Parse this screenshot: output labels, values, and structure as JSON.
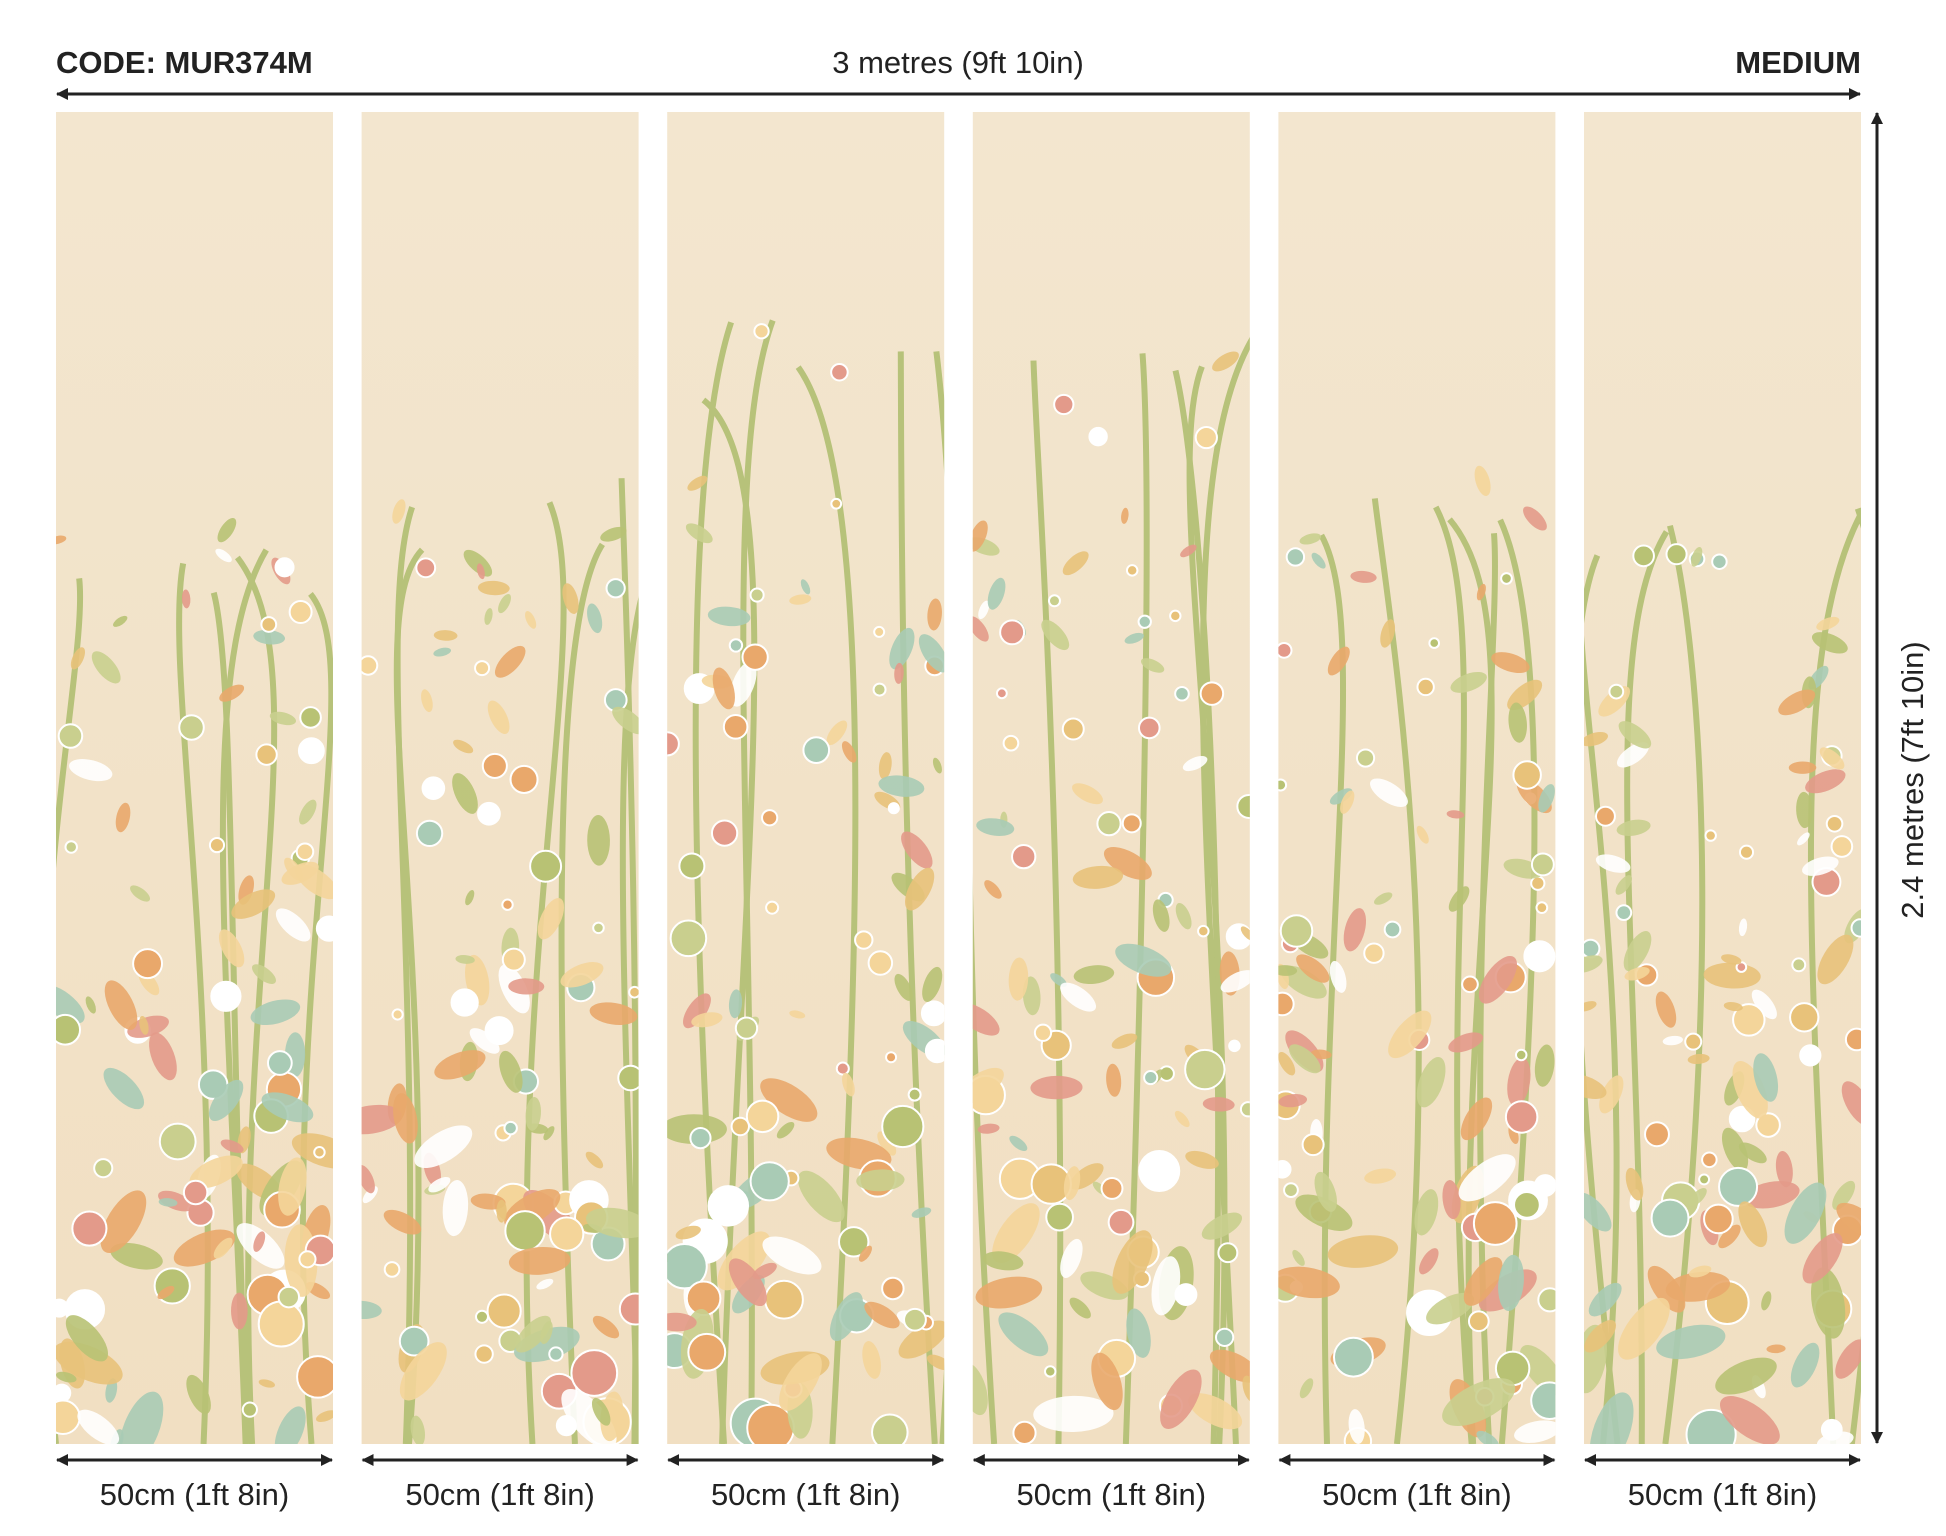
{
  "header": {
    "code": "CODE: MUR374M",
    "width": "3 metres (9ft 10in)",
    "size": "MEDIUM"
  },
  "height": "2.4 metres (7ft 10in)",
  "panels": [
    {
      "width": "50cm (1ft 8in)"
    },
    {
      "width": "50cm (1ft 8in)"
    },
    {
      "width": "50cm (1ft 8in)"
    },
    {
      "width": "50cm (1ft 8in)"
    },
    {
      "width": "50cm (1ft 8in)"
    },
    {
      "width": "50cm (1ft 8in)"
    }
  ]
}
